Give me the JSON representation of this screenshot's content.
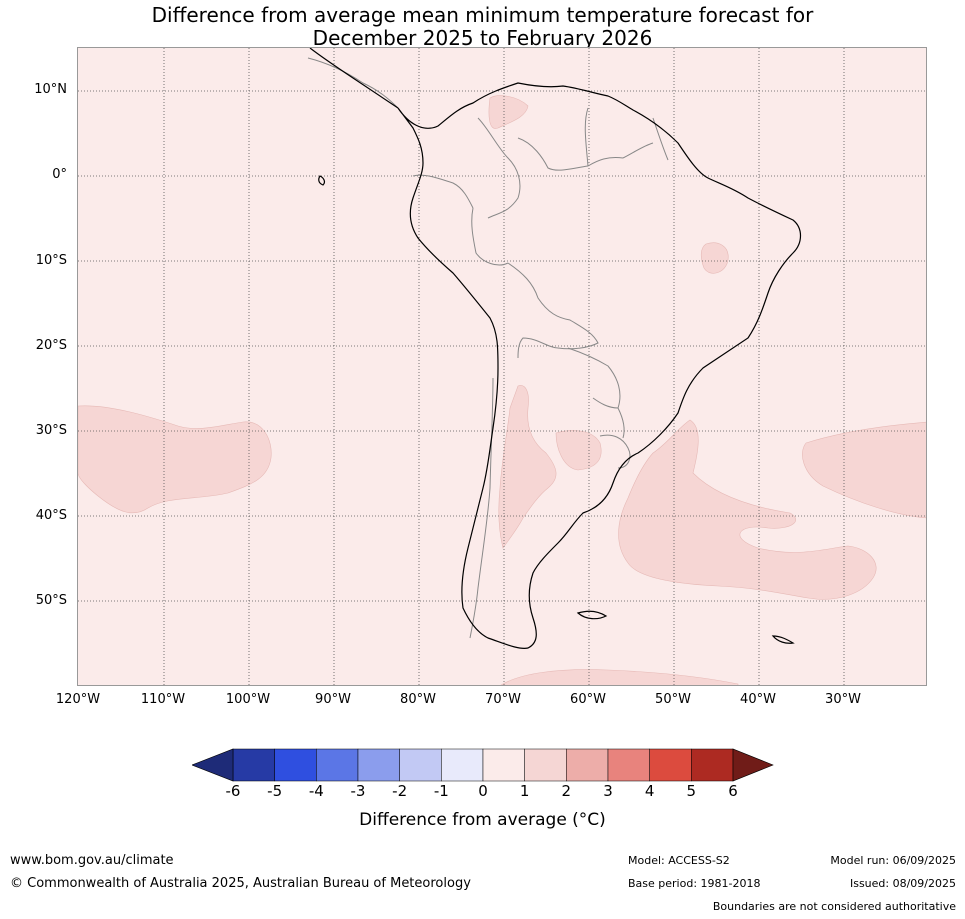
{
  "title": {
    "line1": "Difference from average mean minimum temperature forecast for",
    "line2": "December 2025 to February 2026"
  },
  "map": {
    "background_color": "#fbebea",
    "anomaly_color_1_to_2": "#f6d6d4",
    "lat_labels": [
      "10°N",
      "0°",
      "10°S",
      "20°S",
      "30°S",
      "40°S",
      "50°S"
    ],
    "lon_labels": [
      "120°W",
      "110°W",
      "100°W",
      "90°W",
      "80°W",
      "70°W",
      "60°W",
      "50°W",
      "40°W",
      "30°W"
    ]
  },
  "legend": {
    "ticks": [
      "-6",
      "-5",
      "-4",
      "-3",
      "-2",
      "-1",
      "0",
      "1",
      "2",
      "3",
      "4",
      "5",
      "6"
    ],
    "colors": [
      "#263aa5",
      "#2f4fe0",
      "#5b76e6",
      "#8b9ded",
      "#c2c9f4",
      "#e8eafb",
      "#fbebea",
      "#f5d6d4",
      "#edada9",
      "#e8837d",
      "#dc4b3e",
      "#ad2a22"
    ],
    "low_extend_color": "#1e2b78",
    "high_extend_color": "#701c18",
    "label": "Difference from average (°C)"
  },
  "footer": {
    "website": "www.bom.gov.au/climate",
    "copyright": "© Commonwealth of Australia 2025, Australian Bureau of Meteorology",
    "model": "Model: ACCESS-S2",
    "base_period": "Base period: 1981-2018",
    "model_run": "Model run: 06/09/2025",
    "issued": "Issued: 08/09/2025",
    "disclaimer": "Boundaries are not considered authoritative"
  }
}
